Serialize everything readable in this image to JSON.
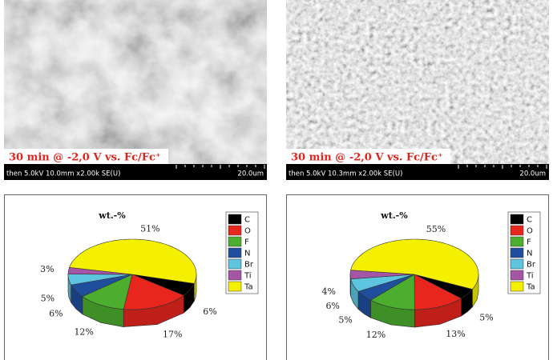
{
  "images": [
    {
      "caption": "30 min @ -2,0 V vs. Fc/Fc⁺",
      "info": "then 5.0kV 10.0mm x2.00k SE(U)",
      "scale": "20.0um"
    },
    {
      "caption": "30 min @ -2,0 V vs. Fc/Fc⁺",
      "info": "then 5.0kV 10.3mm x2.00k SE(U)",
      "scale": "20.0um"
    }
  ],
  "chart_data": [
    {
      "type": "pie",
      "title": "wt.-%",
      "categories": [
        "C",
        "O",
        "F",
        "N",
        "Br",
        "Ti",
        "Ta"
      ],
      "values": [
        6,
        17,
        12,
        6,
        5,
        3,
        51
      ],
      "value_labels": [
        "6%",
        "17%",
        "12%",
        "6%",
        "5%",
        "3%",
        "51%"
      ],
      "colors": [
        "#000000",
        "#e8261e",
        "#4cae2e",
        "#1f4e9c",
        "#5ec5e0",
        "#a455a6",
        "#f5ef00"
      ]
    },
    {
      "type": "pie",
      "title": "wt.-%",
      "categories": [
        "C",
        "O",
        "F",
        "N",
        "Br",
        "Ti",
        "Ta"
      ],
      "values": [
        5,
        13,
        12,
        5,
        6,
        4,
        55
      ],
      "value_labels": [
        "5%",
        "13%",
        "12%",
        "5%",
        "6%",
        "4%",
        "55%"
      ],
      "colors": [
        "#000000",
        "#e8261e",
        "#4cae2e",
        "#1f4e9c",
        "#5ec5e0",
        "#a455a6",
        "#f5ef00"
      ]
    }
  ]
}
